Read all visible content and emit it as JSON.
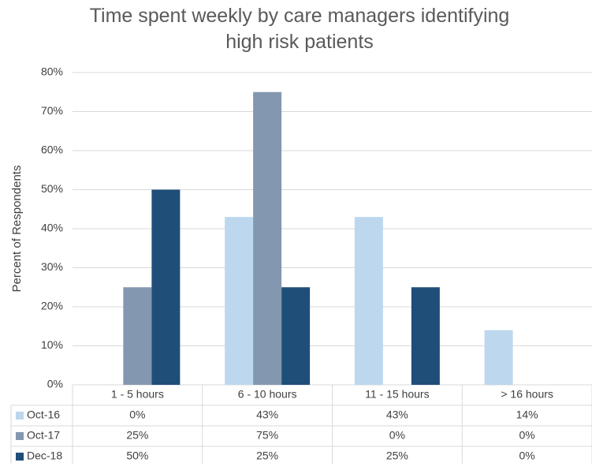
{
  "chart_data": {
    "type": "bar",
    "title": "Time spent weekly by care managers identifying high risk patients",
    "y_label": "Percent of Respondents",
    "categories": [
      "1 - 5 hours",
      "6 - 10 hours",
      "11 - 15 hours",
      "> 16 hours"
    ],
    "series": [
      {
        "name": "Oct-16",
        "color": "#bdd7ee",
        "values": [
          0,
          43,
          43,
          14
        ],
        "value_labels": [
          "0%",
          "43%",
          "43%",
          "14%"
        ]
      },
      {
        "name": "Oct-17",
        "color": "#8497b0",
        "values": [
          25,
          75,
          0,
          0
        ],
        "value_labels": [
          "25%",
          "75%",
          "0%",
          "0%"
        ]
      },
      {
        "name": "Dec-18",
        "color": "#1f4e79",
        "values": [
          50,
          25,
          25,
          0
        ],
        "value_labels": [
          "50%",
          "25%",
          "25%",
          "0%"
        ]
      }
    ],
    "ylim": [
      0,
      80
    ],
    "yticks": [
      {
        "value": 0,
        "label": "0%"
      },
      {
        "value": 10,
        "label": "10%"
      },
      {
        "value": 20,
        "label": "20%"
      },
      {
        "value": 30,
        "label": "30%"
      },
      {
        "value": 40,
        "label": "40%"
      },
      {
        "value": 50,
        "label": "50%"
      },
      {
        "value": 60,
        "label": "60%"
      },
      {
        "value": 70,
        "label": "70%"
      },
      {
        "value": 80,
        "label": "80%"
      }
    ],
    "grid": true
  }
}
